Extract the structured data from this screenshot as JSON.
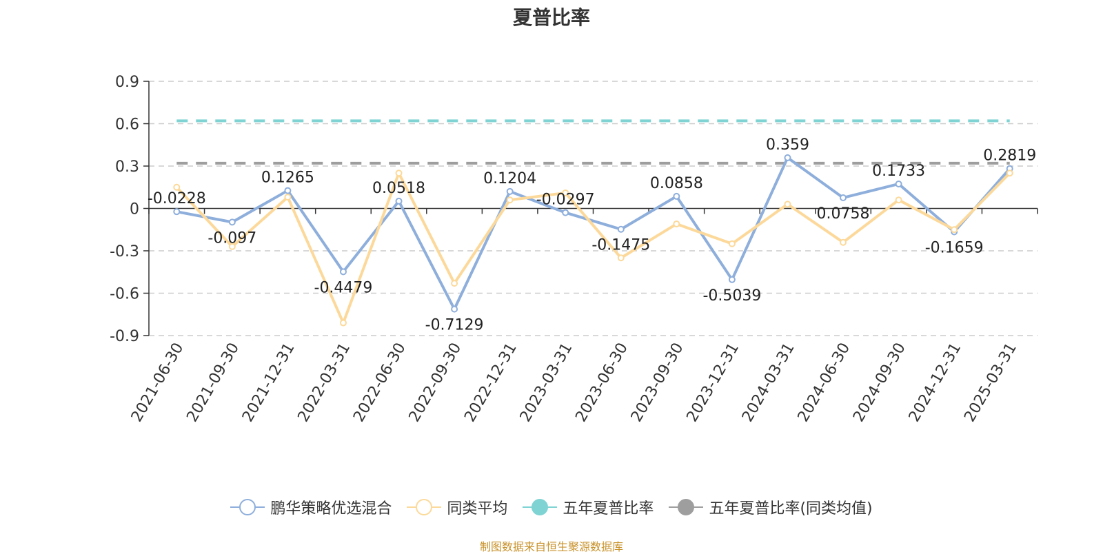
{
  "chart_data": {
    "type": "line",
    "title": "夏普比率",
    "categories": [
      "2021-06-30",
      "2021-09-30",
      "2021-12-31",
      "2022-03-31",
      "2022-06-30",
      "2022-09-30",
      "2022-12-31",
      "2023-03-31",
      "2023-06-30",
      "2023-09-30",
      "2023-12-31",
      "2024-03-31",
      "2024-06-30",
      "2024-09-30",
      "2024-12-31",
      "2025-03-31"
    ],
    "ylim": [
      -0.9,
      0.9
    ],
    "yticks": [
      "0.9",
      "0.6",
      "0.3",
      "0",
      "-0.3",
      "-0.6",
      "-0.9"
    ],
    "grid": true,
    "legend_position": "bottom",
    "series": [
      {
        "name": "鹏华策略优选混合",
        "color": "#8eaedb",
        "marker": "circle",
        "values": [
          -0.0228,
          -0.097,
          0.1265,
          -0.4479,
          0.0518,
          -0.7129,
          0.1204,
          -0.0297,
          -0.1475,
          0.0858,
          -0.5039,
          0.359,
          0.0758,
          0.1733,
          -0.1659,
          0.2819
        ],
        "labels": [
          "-0.0228",
          "-0.097",
          "0.1265",
          "-0.4479",
          "0.0518",
          "-0.7129",
          "0.1204",
          "-0.0297",
          "-0.1475",
          "0.0858",
          "-0.5039",
          "0.359",
          "0.0758",
          "0.1733",
          "-0.1659",
          "0.2819"
        ]
      },
      {
        "name": "同类平均",
        "color": "#fcd99a",
        "marker": "circle",
        "values": [
          0.15,
          -0.27,
          0.08,
          -0.81,
          0.25,
          -0.53,
          0.06,
          0.11,
          -0.35,
          -0.11,
          -0.25,
          0.03,
          -0.24,
          0.06,
          -0.15,
          0.25
        ]
      },
      {
        "name": "五年夏普比率",
        "color": "#7fd3d3",
        "marker": "filled-circle",
        "style": "dashed",
        "constant": 0.62
      },
      {
        "name": "五年夏普比率(同类均值)",
        "color": "#9e9e9e",
        "marker": "filled-circle",
        "style": "dashed",
        "constant": 0.32
      }
    ]
  },
  "footer": {
    "source": "制图数据来自恒生聚源数据库"
  }
}
